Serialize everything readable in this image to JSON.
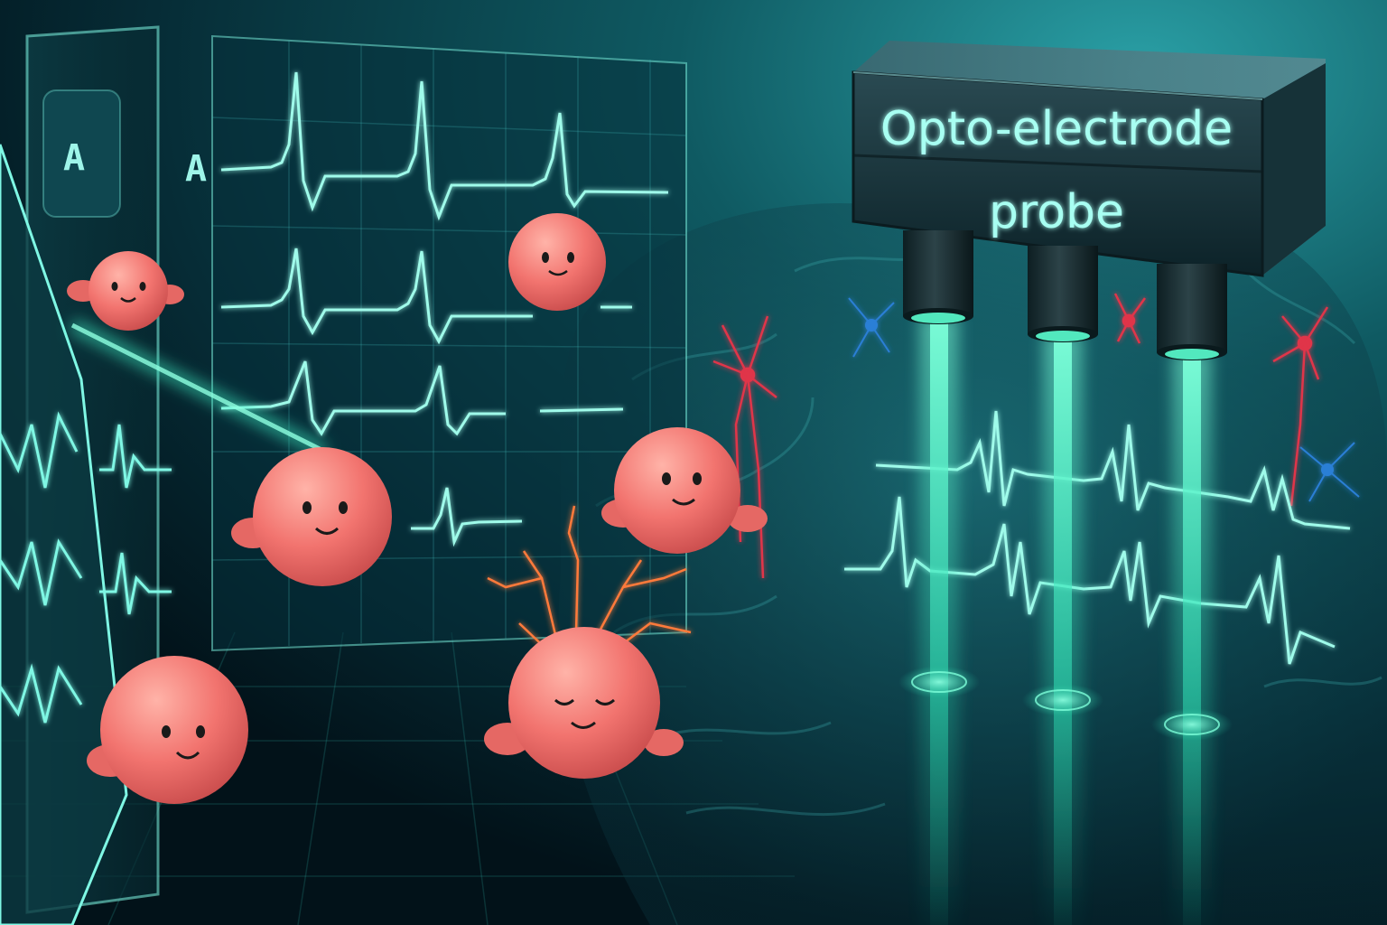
{
  "probe": {
    "label_line1": "Opto-electrode",
    "label_line2": "probe",
    "emitter_count": 3
  },
  "panels": {
    "back_letter": "A",
    "front_letter": "A"
  },
  "colors": {
    "background_dark": "#031820",
    "background_glow": "#1a8a8f",
    "signal": "#7ff7e4",
    "beam": "#3ff0c4",
    "cell_body": "#f2746f",
    "neuron_red": "#e0344a",
    "neuron_blue": "#2c7fd6"
  }
}
